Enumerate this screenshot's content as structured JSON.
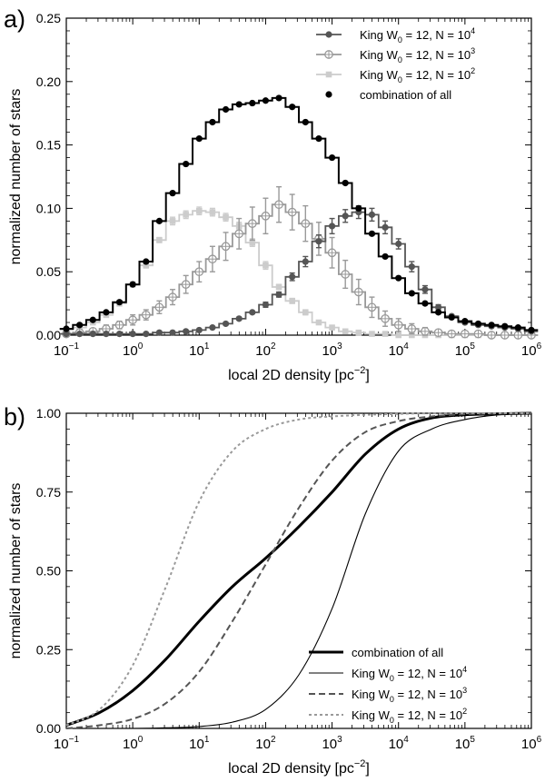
{
  "figure": {
    "panels": [
      {
        "label": "a)"
      },
      {
        "label": "b)"
      }
    ]
  },
  "chart_data": [
    {
      "type": "line",
      "style": "step histogram with error bars",
      "panel": "a)",
      "title": "",
      "xlabel": "local 2D density [pc^-2]",
      "ylabel": "normalized number of stars",
      "xscale": "log",
      "xlim": [
        0.1,
        1000000
      ],
      "ylim": [
        0,
        0.25
      ],
      "xticks": [
        {
          "value": 0.1,
          "base": "10",
          "exp": "−1"
        },
        {
          "value": 1,
          "base": "10",
          "exp": "0"
        },
        {
          "value": 10,
          "base": "10",
          "exp": "1"
        },
        {
          "value": 100,
          "base": "10",
          "exp": "2"
        },
        {
          "value": 1000,
          "base": "10",
          "exp": "3"
        },
        {
          "value": 10000,
          "base": "10",
          "exp": "4"
        },
        {
          "value": 100000,
          "base": "10",
          "exp": "5"
        },
        {
          "value": 1000000,
          "base": "10",
          "exp": "6"
        }
      ],
      "yticks": [
        "0.00",
        "0.05",
        "0.10",
        "0.15",
        "0.20",
        "0.25"
      ],
      "legend_position": "top-right",
      "x_log10": [
        -1.0,
        -0.8,
        -0.6,
        -0.4,
        -0.2,
        0.0,
        0.2,
        0.4,
        0.6,
        0.8,
        1.0,
        1.2,
        1.4,
        1.6,
        1.8,
        2.0,
        2.2,
        2.4,
        2.6,
        2.8,
        3.0,
        3.2,
        3.4,
        3.6,
        3.8,
        4.0,
        4.2,
        4.4,
        4.6,
        4.8,
        5.0,
        5.2,
        5.4,
        5.6,
        5.8,
        6.0
      ],
      "series": [
        {
          "name": "King W0 = 12, N = 10^4",
          "legend_base": "King W",
          "legend_sub": "0",
          "legend_mid": " = 12, N  = 10",
          "legend_exp": "4",
          "color": "#555555",
          "marker": "filled-circle",
          "values": [
            0.001,
            0.001,
            0.001,
            0.001,
            0.001,
            0.001,
            0.001,
            0.002,
            0.002,
            0.003,
            0.004,
            0.006,
            0.009,
            0.013,
            0.018,
            0.024,
            0.032,
            0.046,
            0.058,
            0.074,
            0.086,
            0.094,
            0.097,
            0.095,
            0.085,
            0.072,
            0.054,
            0.036,
            0.022,
            0.015,
            0.01,
            0.008,
            0.007,
            0.006,
            0.005,
            0.003
          ],
          "errors": [
            0.0,
            0.0,
            0.0,
            0.0,
            0.0,
            0.0,
            0.0,
            0.0,
            0.0,
            0.0,
            0.0,
            0.0,
            0.001,
            0.001,
            0.001,
            0.002,
            0.002,
            0.003,
            0.004,
            0.005,
            0.006,
            0.005,
            0.005,
            0.005,
            0.005,
            0.004,
            0.004,
            0.003,
            0.002,
            0.001,
            0.001,
            0.001,
            0.001,
            0.001,
            0.001,
            0.0
          ]
        },
        {
          "name": "King W0 = 12, N = 10^3",
          "legend_base": "King W",
          "legend_sub": "0",
          "legend_mid": " = 12, N  = 10",
          "legend_exp": "3",
          "color": "#999999",
          "marker": "open-circle-cross",
          "values": [
            0.001,
            0.002,
            0.003,
            0.005,
            0.008,
            0.012,
            0.016,
            0.022,
            0.03,
            0.04,
            0.05,
            0.06,
            0.07,
            0.08,
            0.088,
            0.094,
            0.103,
            0.097,
            0.088,
            0.076,
            0.065,
            0.048,
            0.034,
            0.022,
            0.013,
            0.008,
            0.005,
            0.003,
            0.002,
            0.001,
            0.001,
            0.001,
            0.0,
            0.0,
            0.0,
            0.0
          ],
          "errors": [
            0.001,
            0.001,
            0.002,
            0.003,
            0.003,
            0.004,
            0.004,
            0.005,
            0.006,
            0.007,
            0.008,
            0.01,
            0.011,
            0.012,
            0.013,
            0.014,
            0.014,
            0.014,
            0.014,
            0.013,
            0.012,
            0.011,
            0.01,
            0.008,
            0.006,
            0.005,
            0.004,
            0.003,
            0.002,
            0.001,
            0.001,
            0.001,
            0.0,
            0.0,
            0.0,
            0.0
          ]
        },
        {
          "name": "King W0 = 12, N = 10^2",
          "legend_base": "King W",
          "legend_sub": "0",
          "legend_mid": " = 12, N  = 10",
          "legend_exp": "2",
          "color": "#cccccc",
          "marker": "filled-square",
          "values": [
            0.004,
            0.006,
            0.01,
            0.016,
            0.025,
            0.04,
            0.055,
            0.075,
            0.09,
            0.095,
            0.098,
            0.097,
            0.093,
            0.086,
            0.073,
            0.055,
            0.038,
            0.027,
            0.018,
            0.01,
            0.006,
            0.003,
            0.002,
            0.001,
            0.001,
            0.0,
            0.0,
            0.0,
            0.0,
            0.0,
            0.0,
            0.0,
            0.0,
            0.0,
            0.0,
            0.0
          ],
          "errors": [
            0.001,
            0.001,
            0.001,
            0.002,
            0.002,
            0.002,
            0.002,
            0.002,
            0.003,
            0.003,
            0.003,
            0.003,
            0.003,
            0.003,
            0.003,
            0.003,
            0.002,
            0.002,
            0.002,
            0.001,
            0.001,
            0.001,
            0.0,
            0.0,
            0.0,
            0.0,
            0.0,
            0.0,
            0.0,
            0.0,
            0.0,
            0.0,
            0.0,
            0.0,
            0.0,
            0.0
          ]
        },
        {
          "name": "combination of all",
          "legend_label": "combination of all",
          "color": "#000000",
          "marker": "filled-circle",
          "values": [
            0.005,
            0.008,
            0.012,
            0.018,
            0.026,
            0.04,
            0.058,
            0.09,
            0.112,
            0.135,
            0.155,
            0.168,
            0.178,
            0.182,
            0.183,
            0.185,
            0.187,
            0.18,
            0.168,
            0.155,
            0.14,
            0.12,
            0.1,
            0.08,
            0.062,
            0.045,
            0.033,
            0.025,
            0.018,
            0.014,
            0.011,
            0.009,
            0.008,
            0.007,
            0.006,
            0.004
          ],
          "errors": []
        }
      ]
    },
    {
      "type": "line",
      "style": "cumulative distribution",
      "panel": "b)",
      "title": "",
      "xlabel": "local 2D density [pc^-2]",
      "ylabel": "normalized number of stars",
      "xscale": "log",
      "xlim": [
        0.1,
        1000000
      ],
      "ylim": [
        0,
        1.0
      ],
      "xticks": [
        {
          "value": 0.1,
          "base": "10",
          "exp": "−1"
        },
        {
          "value": 1,
          "base": "10",
          "exp": "0"
        },
        {
          "value": 10,
          "base": "10",
          "exp": "1"
        },
        {
          "value": 100,
          "base": "10",
          "exp": "2"
        },
        {
          "value": 1000,
          "base": "10",
          "exp": "3"
        },
        {
          "value": 10000,
          "base": "10",
          "exp": "4"
        },
        {
          "value": 100000,
          "base": "10",
          "exp": "5"
        },
        {
          "value": 1000000,
          "base": "10",
          "exp": "6"
        }
      ],
      "yticks": [
        "0.00",
        "0.25",
        "0.50",
        "0.75",
        "1.00"
      ],
      "legend_position": "bottom-right",
      "x_log10": [
        -1.0,
        -0.5,
        0.0,
        0.5,
        1.0,
        1.5,
        2.0,
        2.5,
        3.0,
        3.5,
        4.0,
        4.5,
        5.0,
        5.5,
        6.0
      ],
      "series": [
        {
          "name": "combination of all",
          "legend_label": "combination of all",
          "color": "#000000",
          "line_style": "solid-thick",
          "values": [
            0.01,
            0.05,
            0.12,
            0.22,
            0.34,
            0.45,
            0.54,
            0.64,
            0.75,
            0.87,
            0.95,
            0.985,
            0.995,
            0.998,
            1.0
          ]
        },
        {
          "name": "King W0 = 12, N = 10^4",
          "legend_base": "King W",
          "legend_sub": "0",
          "legend_mid": " = 12, N  = 10",
          "legend_exp": "4",
          "color": "#000000",
          "line_style": "solid-thin",
          "values": [
            0.0,
            0.0,
            0.0,
            0.002,
            0.006,
            0.02,
            0.06,
            0.17,
            0.38,
            0.68,
            0.88,
            0.95,
            0.98,
            0.995,
            1.0
          ]
        },
        {
          "name": "King W0 = 12, N = 10^3",
          "legend_base": "King W",
          "legend_sub": "0",
          "legend_mid": " = 12, N  = 10",
          "legend_exp": "3",
          "color": "#555555",
          "line_style": "dashed",
          "values": [
            0.0,
            0.01,
            0.03,
            0.08,
            0.18,
            0.34,
            0.52,
            0.7,
            0.85,
            0.94,
            0.975,
            0.99,
            0.997,
            0.999,
            1.0
          ]
        },
        {
          "name": "King W0 = 12, N = 10^2",
          "legend_base": "King W",
          "legend_sub": "0",
          "legend_mid": " = 12, N  = 10",
          "legend_exp": "2",
          "color": "#999999",
          "line_style": "dotted",
          "values": [
            0.01,
            0.06,
            0.2,
            0.45,
            0.72,
            0.88,
            0.95,
            0.98,
            0.99,
            0.995,
            0.998,
            1.0,
            1.0,
            1.0,
            1.0
          ]
        }
      ]
    }
  ]
}
